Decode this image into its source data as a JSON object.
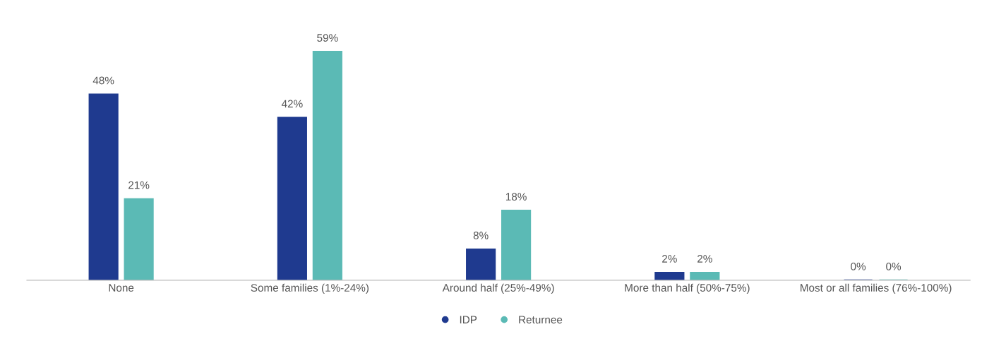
{
  "chart_data": {
    "type": "bar",
    "categories": [
      "None",
      "Some families (1%-24%)",
      "Around half (25%-49%)",
      "More than half (50%-75%)",
      "Most or all families (76%-100%)"
    ],
    "series": [
      {
        "name": "IDP",
        "color": "#1f3a8f",
        "values": [
          48,
          42,
          8,
          2,
          0
        ],
        "value_labels": [
          "48%",
          "42%",
          "8%",
          "2%",
          "0%"
        ]
      },
      {
        "name": "Returnee",
        "color": "#5bbab5",
        "values": [
          21,
          59,
          18,
          2,
          0
        ],
        "value_labels": [
          "21%",
          "59%",
          "18%",
          "2%",
          "0%"
        ]
      }
    ],
    "legend": "bottom",
    "grid": false,
    "tick_labels": "x"
  }
}
